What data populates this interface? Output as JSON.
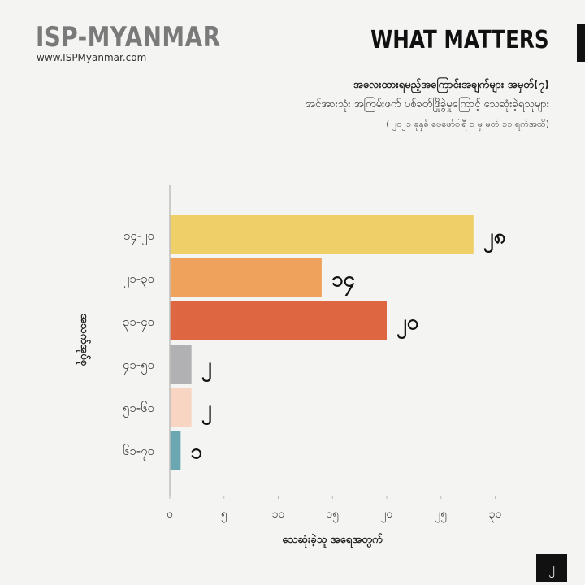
{
  "header": {
    "brand": "ISP-MYANMAR",
    "url": "www.ISPMyanmar.com",
    "section": "WHAT MATTERS"
  },
  "titles": {
    "line1": "အလေးထားရမည့်အကြောင်းအချက်များ အမှတ်(၇)",
    "line2": "အင်အားသုံး အကြမ်းဖက် ပစ်ခတ်ဖြိုခွဲမှုကြောင့် သေဆုံးခဲ့ရသူများ",
    "line3": "( ၂၀၂၁ ခုနှစ် ဖေဖော်ဝါရီ ၁ မှ မတ် ၁၁ ရက်အထိ)"
  },
  "page_number": "၂",
  "colors": {
    "bar1": "#efd068",
    "bar2": "#efa25c",
    "bar3": "#de6640",
    "bar4": "#b1b1b3",
    "bar5": "#f8d4c3",
    "bar6": "#6ba7b1",
    "axis": "#bdbdbd"
  },
  "chart_data": {
    "type": "bar",
    "orientation": "horizontal",
    "categories": [
      "၁၄-၂၀",
      "၂၁-၃၀",
      "၃၁-၄၀",
      "၄၁-၅၀",
      "၅၁-၆၀",
      "၆၁-၇၀"
    ],
    "values": [
      28,
      14,
      20,
      2,
      2,
      1
    ],
    "value_labels": [
      "၂၈",
      "၁၄",
      "၂၀",
      "၂",
      "၂",
      "၁"
    ],
    "xticks": [
      0,
      5,
      10,
      15,
      20,
      25,
      30
    ],
    "xtick_labels": [
      "၀",
      "၅",
      "၁၀",
      "၁၅",
      "၂၀",
      "၂၅",
      "၃၀"
    ],
    "xlim": [
      0,
      30
    ],
    "xlabel": "သေဆုံးခဲ့သူ အရေအတွက်",
    "ylabel": "အသက်အုပ်စု",
    "grid": false
  }
}
